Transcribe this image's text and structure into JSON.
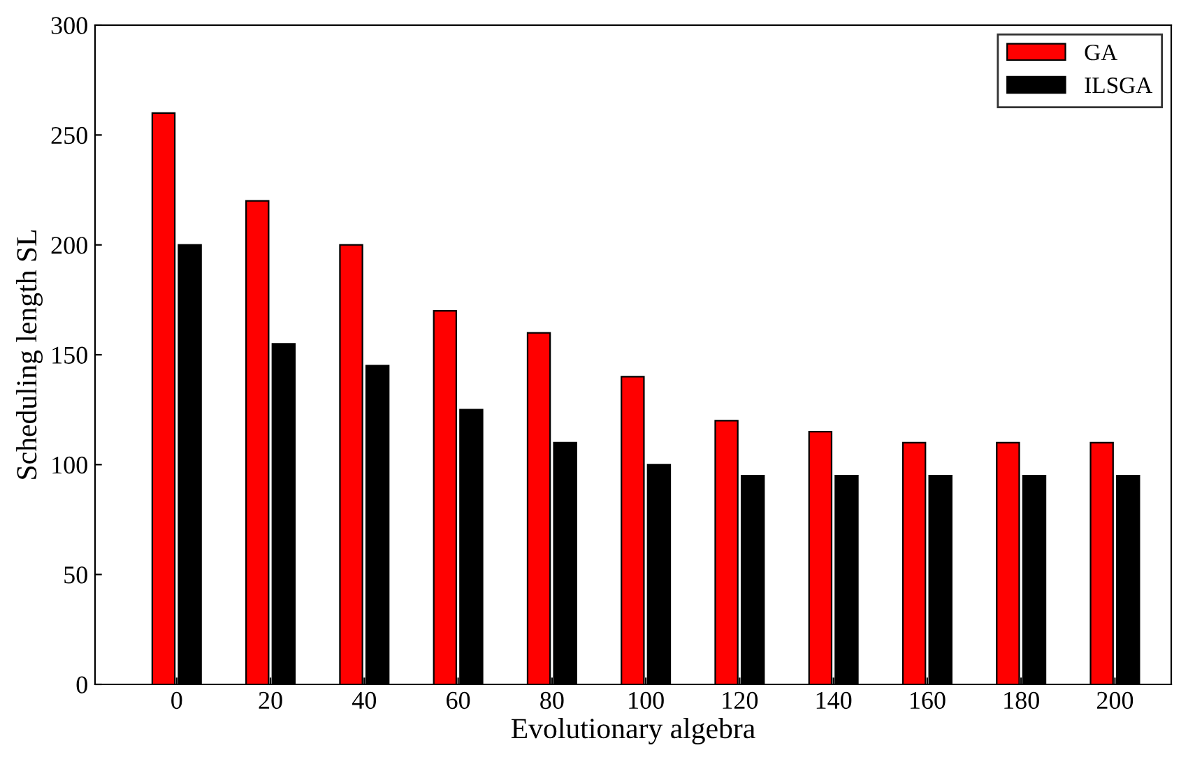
{
  "chart_data": {
    "type": "bar",
    "xlabel": "Evolutionary algebra",
    "ylabel": "Scheduling length SL",
    "categories": [
      "0",
      "20",
      "40",
      "60",
      "80",
      "100",
      "120",
      "140",
      "160",
      "180",
      "200"
    ],
    "series": [
      {
        "name": "GA",
        "color": "#ff0000",
        "values": [
          260,
          220,
          200,
          170,
          160,
          140,
          120,
          115,
          110,
          110,
          110
        ]
      },
      {
        "name": "ILSGA",
        "color": "#000000",
        "values": [
          200,
          155,
          145,
          125,
          110,
          100,
          95,
          95,
          95,
          95,
          95
        ]
      }
    ],
    "ylim": [
      0,
      300
    ],
    "yticks": [
      0,
      50,
      100,
      150,
      200,
      250,
      300
    ],
    "grid": false,
    "legend": "top right"
  }
}
